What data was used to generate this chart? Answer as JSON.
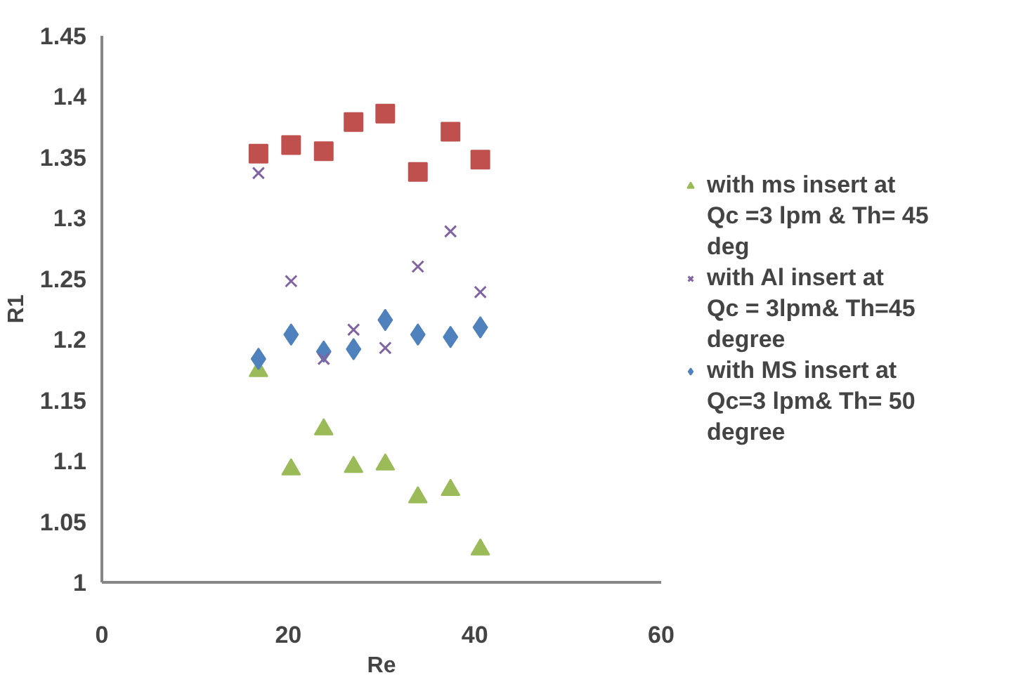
{
  "chart_data": {
    "type": "scatter",
    "xlabel": "Re",
    "ylabel": "R1",
    "x": [
      16.8,
      20.3,
      23.8,
      27.0,
      30.4,
      33.9,
      37.4,
      40.6
    ],
    "series": [
      {
        "name": "with ms insert at Qc =3 lpm & Th= 45 deg",
        "color": "#9bbb59",
        "marker": "triangle",
        "values": [
          1.174,
          1.093,
          1.126,
          1.095,
          1.097,
          1.07,
          1.076,
          1.027
        ]
      },
      {
        "name": "with Al insert at Qc = 3lpm& Th=45 degree",
        "color": "#8064a2",
        "marker": "cross",
        "values": [
          1.337,
          1.248,
          1.184,
          1.208,
          1.193,
          1.26,
          1.289,
          1.239
        ]
      },
      {
        "name": "with MS insert at Qc=3 lpm& Th= 50 degree",
        "color": "#4f81bd",
        "marker": "diamond",
        "values": [
          1.184,
          1.204,
          1.19,
          1.192,
          1.216,
          1.204,
          1.202,
          1.21
        ]
      },
      {
        "color": "#c0504d",
        "marker": "square",
        "values": [
          1.353,
          1.36,
          1.355,
          1.379,
          1.386,
          1.338,
          1.371,
          1.348
        ]
      }
    ],
    "xlim": [
      0,
      60
    ],
    "xticks": [
      0,
      20,
      40,
      60
    ],
    "ylim": [
      1,
      1.45
    ],
    "yticks": [
      {
        "value": 1,
        "label": "1"
      },
      1.05,
      {
        "value": 1.1,
        "label": "1.1"
      },
      1.15,
      {
        "value": 1.2,
        "label": "1.2"
      },
      1.25,
      {
        "value": 1.3,
        "label": "1.3"
      },
      1.35,
      {
        "value": 1.4,
        "label": "1.4"
      },
      1.45
    ],
    "grid": false,
    "legend": "right"
  }
}
